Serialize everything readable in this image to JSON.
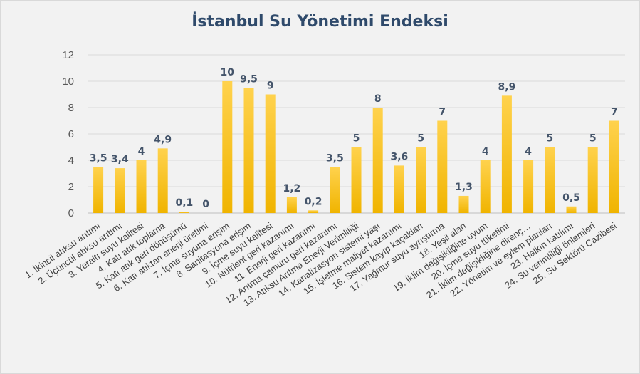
{
  "chart_data": {
    "type": "bar",
    "title": "İstanbul Su Yönetimi Endeksi",
    "xlabel": "",
    "ylabel": "",
    "ylim": [
      0,
      12
    ],
    "yticks": [
      "0",
      "2",
      "4",
      "6",
      "8",
      "10",
      "12"
    ],
    "grid": true,
    "legend": "none",
    "bar_color_top": "#ffd24d",
    "bar_color_bottom": "#f0b400",
    "categories": [
      "1. İkincil atıksu arıtımı",
      "2. Üçüncül atıksu arıtımı",
      "3. Yeraltı suyu kalitesi",
      "4. Katı atık toplama",
      "5. Katı atık geri dönüşümü",
      "6. Katı atıktan enerji üretimi",
      "7. İçme suyuna erişim",
      "8. Sanitasyona erişim",
      "9. İçme suyu kalitesi",
      "10. Nütrient geri kazanımı",
      "11. Enerji geri kazanımı",
      "12. Arıtma çamuru geri kazanımı",
      "13. Atıksu Arıtma Enerji Verimliliği",
      "14. Kanalizasyon sistemi yaşı",
      "15. İşletme maliyet kazanımı",
      "16. Sistem kayıp kaçakları",
      "17. Yağmur suyu ayrıştırma",
      "18. Yeşil alan",
      "19. İklim değişikliğine uyum",
      "20. İçme suyu tüketimi",
      "21. İklim değişikliğine direnç…",
      "22. Yönetim ve eylem planları",
      "23. Halkın katılımı",
      "24. Su verimliliği önlemleri",
      "25. Su Sektörü Cazibesi"
    ],
    "values": [
      3.5,
      3.4,
      4,
      4.9,
      0.1,
      0,
      10,
      9.5,
      9,
      1.2,
      0.2,
      3.5,
      5,
      8,
      3.6,
      5,
      7,
      1.3,
      4,
      8.9,
      4,
      5,
      0.5,
      5,
      7
    ],
    "data_labels": [
      "3,5",
      "3,4",
      "4",
      "4,9",
      "0,1",
      "0",
      "10",
      "9,5",
      "9",
      "1,2",
      "0,2",
      "3,5",
      "5",
      "8",
      "3,6",
      "5",
      "7",
      "1,3",
      "4",
      "8,9",
      "4",
      "5",
      "0,5",
      "5",
      "7"
    ]
  }
}
